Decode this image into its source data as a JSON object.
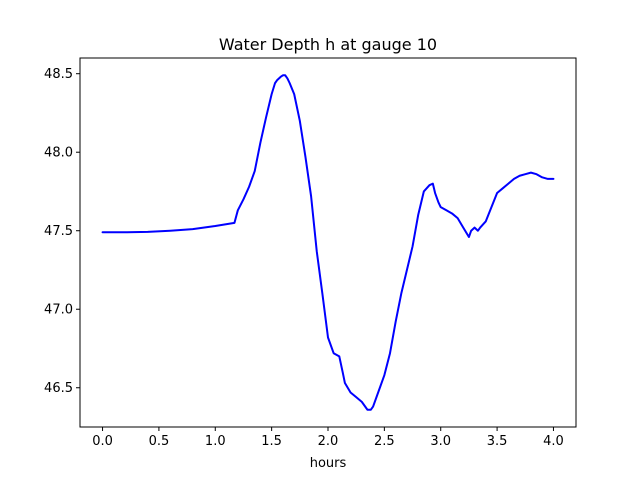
{
  "chart_data": {
    "type": "line",
    "title": "Water Depth h at gauge 10",
    "xlabel": "hours",
    "ylabel": "",
    "xlim": [
      -0.2,
      4.2
    ],
    "ylim": [
      46.25,
      48.6
    ],
    "xticks": [
      0.0,
      0.5,
      1.0,
      1.5,
      2.0,
      2.5,
      3.0,
      3.5,
      4.0
    ],
    "xtick_labels": [
      "0.0",
      "0.5",
      "1.0",
      "1.5",
      "2.0",
      "2.5",
      "3.0",
      "3.5",
      "4.0"
    ],
    "yticks": [
      46.5,
      47.0,
      47.5,
      48.0,
      48.5
    ],
    "ytick_labels": [
      "46.5",
      "47.0",
      "47.5",
      "48.0",
      "48.5"
    ],
    "grid": false,
    "legend": "none",
    "series": [
      {
        "color": "#0000ff",
        "x": [
          0.0,
          0.2,
          0.4,
          0.6,
          0.8,
          1.0,
          1.17,
          1.2,
          1.25,
          1.3,
          1.35,
          1.4,
          1.45,
          1.5,
          1.53,
          1.55,
          1.58,
          1.6,
          1.62,
          1.64,
          1.66,
          1.7,
          1.75,
          1.8,
          1.85,
          1.9,
          1.95,
          2.0,
          2.05,
          2.1,
          2.13,
          2.15,
          2.2,
          2.25,
          2.3,
          2.35,
          2.38,
          2.4,
          2.45,
          2.5,
          2.55,
          2.6,
          2.65,
          2.7,
          2.75,
          2.8,
          2.85,
          2.9,
          2.93,
          2.95,
          2.98,
          3.0,
          3.05,
          3.1,
          3.15,
          3.2,
          3.25,
          3.27,
          3.3,
          3.33,
          3.35,
          3.4,
          3.45,
          3.5,
          3.55,
          3.6,
          3.65,
          3.7,
          3.75,
          3.8,
          3.85,
          3.9,
          3.95,
          4.0
        ],
        "y": [
          47.49,
          47.49,
          47.493,
          47.5,
          47.51,
          47.53,
          47.55,
          47.63,
          47.7,
          47.78,
          47.88,
          48.06,
          48.22,
          48.37,
          48.44,
          48.46,
          48.48,
          48.49,
          48.49,
          48.47,
          48.44,
          48.37,
          48.2,
          47.97,
          47.72,
          47.37,
          47.1,
          46.82,
          46.72,
          46.7,
          46.6,
          46.53,
          46.47,
          46.44,
          46.41,
          46.36,
          46.36,
          46.38,
          46.48,
          46.58,
          46.72,
          46.92,
          47.1,
          47.25,
          47.4,
          47.6,
          47.75,
          47.79,
          47.8,
          47.74,
          47.68,
          47.65,
          47.63,
          47.61,
          47.58,
          47.52,
          47.46,
          47.5,
          47.52,
          47.5,
          47.52,
          47.56,
          47.65,
          47.74,
          47.77,
          47.8,
          47.83,
          47.85,
          47.86,
          47.87,
          47.86,
          47.84,
          47.83,
          47.83
        ]
      }
    ]
  }
}
